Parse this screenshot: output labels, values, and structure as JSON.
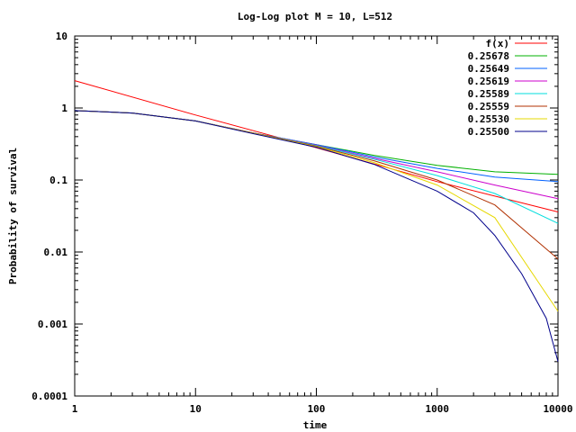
{
  "chart_data": {
    "type": "line",
    "title": "Log-Log plot M = 10, L=512",
    "xlabel": "time",
    "ylabel": "Probability of survival",
    "x_scale": "log",
    "y_scale": "log",
    "xlim": [
      1,
      10000
    ],
    "ylim": [
      0.0001,
      10
    ],
    "x_ticks": [
      {
        "value": 1,
        "label": "1"
      },
      {
        "value": 10,
        "label": "10"
      },
      {
        "value": 100,
        "label": "100"
      },
      {
        "value": 1000,
        "label": "1000"
      },
      {
        "value": 10000,
        "label": "10000"
      }
    ],
    "y_ticks": [
      {
        "value": 0.0001,
        "label": "0.0001"
      },
      {
        "value": 0.001,
        "label": "0.001"
      },
      {
        "value": 0.01,
        "label": "0.01"
      },
      {
        "value": 0.1,
        "label": "0.1"
      },
      {
        "value": 1,
        "label": "1"
      },
      {
        "value": 10,
        "label": "10"
      }
    ],
    "legend_position": "top-right",
    "grid": false,
    "series": [
      {
        "name": "f(x)",
        "color": "#ff0000",
        "x": [
          1,
          10,
          100,
          1000,
          10000
        ],
        "y": [
          2.4,
          0.8,
          0.28,
          0.095,
          0.036
        ]
      },
      {
        "name": "0.25678",
        "color": "#00b000",
        "x": [
          1,
          3,
          10,
          30,
          100,
          300,
          1000,
          3000,
          10000
        ],
        "y": [
          0.92,
          0.85,
          0.66,
          0.45,
          0.31,
          0.22,
          0.16,
          0.13,
          0.12
        ]
      },
      {
        "name": "0.25649",
        "color": "#0060ff",
        "x": [
          1,
          3,
          10,
          30,
          100,
          300,
          1000,
          3000,
          10000
        ],
        "y": [
          0.92,
          0.85,
          0.66,
          0.45,
          0.31,
          0.21,
          0.145,
          0.11,
          0.095
        ]
      },
      {
        "name": "0.25619",
        "color": "#cc00cc",
        "x": [
          1,
          3,
          10,
          30,
          100,
          300,
          1000,
          3000,
          10000
        ],
        "y": [
          0.92,
          0.85,
          0.66,
          0.45,
          0.305,
          0.2,
          0.13,
          0.085,
          0.055
        ]
      },
      {
        "name": "0.25589",
        "color": "#00dddd",
        "x": [
          1,
          3,
          10,
          30,
          100,
          300,
          1000,
          3000,
          10000
        ],
        "y": [
          0.92,
          0.85,
          0.66,
          0.45,
          0.3,
          0.195,
          0.115,
          0.065,
          0.025
        ]
      },
      {
        "name": "0.25559",
        "color": "#b03000",
        "x": [
          1,
          3,
          10,
          30,
          100,
          300,
          1000,
          3000,
          10000
        ],
        "y": [
          0.92,
          0.85,
          0.66,
          0.45,
          0.295,
          0.185,
          0.1,
          0.045,
          0.008
        ]
      },
      {
        "name": "0.25530",
        "color": "#e6d800",
        "x": [
          1,
          3,
          10,
          30,
          100,
          300,
          1000,
          3000,
          10000
        ],
        "y": [
          0.92,
          0.85,
          0.66,
          0.445,
          0.29,
          0.175,
          0.085,
          0.03,
          0.0015
        ]
      },
      {
        "name": "0.25500",
        "color": "#00008b",
        "x": [
          1,
          3,
          10,
          30,
          100,
          300,
          1000,
          2000,
          3000,
          5000,
          8000,
          10000
        ],
        "y": [
          0.92,
          0.85,
          0.66,
          0.44,
          0.285,
          0.165,
          0.07,
          0.035,
          0.017,
          0.005,
          0.0012,
          0.0003
        ]
      }
    ]
  }
}
